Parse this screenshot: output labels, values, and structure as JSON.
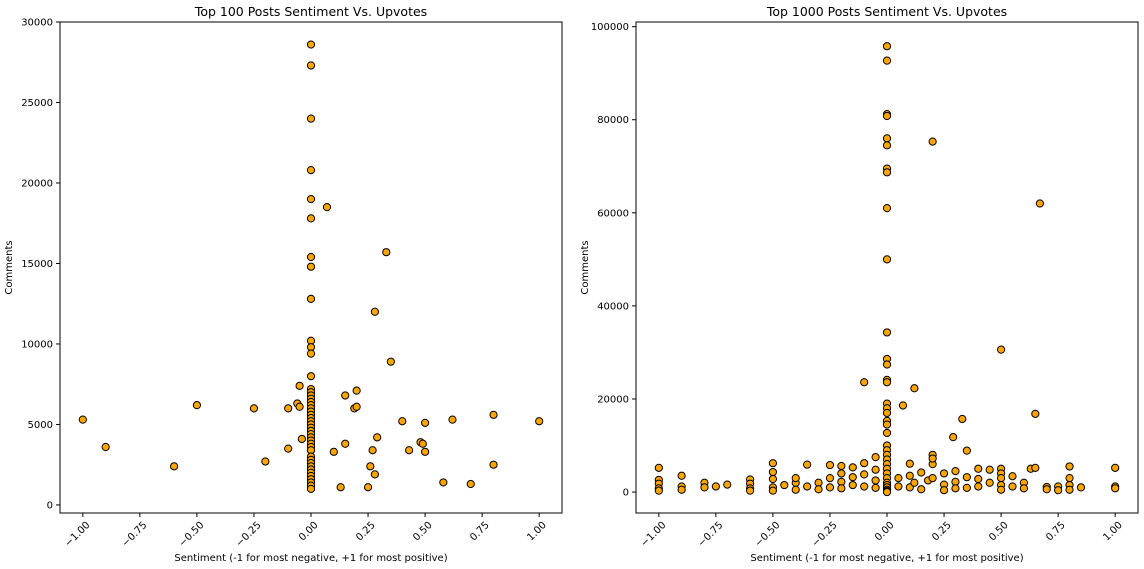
{
  "figure": {
    "background": "#ffffff",
    "marker_face_color": "#ffa500",
    "marker_edge_color": "#000000"
  },
  "chart_data": [
    {
      "type": "scatter",
      "title": "Top 100 Posts Sentiment Vs. Upvotes",
      "xlabel": "Sentiment (-1 for most negative, +1 for most positive)",
      "ylabel": "Comments",
      "xlim": [
        -1.1,
        1.1
      ],
      "ylim": [
        -500,
        30000
      ],
      "xticks": [
        -1.0,
        -0.75,
        -0.5,
        -0.25,
        0.0,
        0.25,
        0.5,
        0.75,
        1.0
      ],
      "xtick_labels": [
        "−1.00",
        "−0.75",
        "−0.50",
        "−0.25",
        "0.00",
        "0.25",
        "0.50",
        "0.75",
        "1.00"
      ],
      "yticks": [
        0,
        5000,
        10000,
        15000,
        20000,
        25000,
        30000
      ],
      "ytick_labels": [
        "0",
        "5000",
        "10000",
        "15000",
        "20000",
        "25000",
        "30000"
      ],
      "grid": false,
      "series": [
        {
          "x": [
            0,
            0,
            0,
            0,
            0,
            0,
            0,
            0,
            0,
            0,
            0,
            0,
            0,
            0,
            0,
            0,
            0,
            0,
            0,
            0,
            0,
            0,
            0,
            0,
            0,
            0,
            0,
            0,
            0,
            0,
            0,
            0,
            0,
            0,
            0,
            0,
            0,
            0,
            0,
            0,
            0,
            0,
            0,
            0,
            -1.0,
            -0.9,
            -0.6,
            -0.5,
            -0.25,
            -0.2,
            -0.1,
            -0.06,
            -0.05,
            -0.05,
            -0.04,
            -0.1,
            0.07,
            0.1,
            0.13,
            0.15,
            0.15,
            0.19,
            0.2,
            0.2,
            0.25,
            0.26,
            0.27,
            0.28,
            0.28,
            0.29,
            0.33,
            0.35,
            0.4,
            0.43,
            0.48,
            0.49,
            0.5,
            0.5,
            0.58,
            0.62,
            0.7,
            0.8,
            0.8,
            1.0
          ],
          "y": [
            28600,
            27300,
            24000,
            20800,
            19000,
            17800,
            15400,
            14800,
            12800,
            10200,
            9800,
            9400,
            8000,
            7200,
            7000,
            6800,
            6600,
            6400,
            6200,
            6000,
            5800,
            5600,
            5400,
            5200,
            5000,
            4800,
            4600,
            4400,
            4200,
            4000,
            3800,
            3600,
            3400,
            3000,
            2800,
            2600,
            2400,
            2200,
            2000,
            1800,
            1600,
            1400,
            1200,
            1000,
            5300,
            3600,
            2400,
            6200,
            6000,
            2700,
            6000,
            6300,
            6100,
            7400,
            4100,
            3500,
            18500,
            3300,
            1100,
            3800,
            6800,
            6000,
            6100,
            7100,
            1100,
            2400,
            3400,
            1900,
            12000,
            4200,
            15700,
            8900,
            5200,
            3400,
            3900,
            3800,
            5100,
            3300,
            1400,
            5300,
            1300,
            5600,
            2500,
            5200
          ]
        }
      ]
    },
    {
      "type": "scatter",
      "title": "Top 1000 Posts Sentiment Vs. Upvotes",
      "xlabel": "Sentiment (-1 for most negative, +1 for most positive)",
      "ylabel": "Comments",
      "xlim": [
        -1.1,
        1.1
      ],
      "ylim": [
        -4500,
        101000
      ],
      "xticks": [
        -1.0,
        -0.75,
        -0.5,
        -0.25,
        0.0,
        0.25,
        0.5,
        0.75,
        1.0
      ],
      "xtick_labels": [
        "−1.00",
        "−0.75",
        "−0.50",
        "−0.25",
        "0.00",
        "0.25",
        "0.50",
        "0.75",
        "1.00"
      ],
      "yticks": [
        0,
        20000,
        40000,
        60000,
        80000,
        100000
      ],
      "ytick_labels": [
        "0",
        "20000",
        "40000",
        "60000",
        "80000",
        "100000"
      ],
      "grid": false,
      "series": [
        {
          "x": [
            0,
            0,
            0,
            0,
            0,
            0,
            0,
            0,
            0,
            0,
            0,
            0,
            0,
            0,
            0,
            0,
            0,
            0,
            0,
            0,
            0,
            0,
            0,
            0,
            0,
            0,
            0,
            0,
            0,
            0,
            0,
            0,
            0,
            0,
            0,
            0.2,
            0.67,
            0.5,
            0.65,
            -0.1,
            0.12,
            0.07,
            0.33,
            0.29,
            0.35,
            0.63,
            0.2,
            0.2,
            -1.0,
            -1.0,
            -1.0,
            -1.0,
            -1.0,
            -0.9,
            -0.9,
            -0.9,
            -0.8,
            -0.8,
            -0.75,
            -0.7,
            -0.6,
            -0.6,
            -0.6,
            -0.6,
            -0.5,
            -0.5,
            -0.5,
            -0.5,
            -0.5,
            -0.45,
            -0.4,
            -0.4,
            -0.4,
            -0.35,
            -0.35,
            -0.3,
            -0.3,
            -0.25,
            -0.25,
            -0.25,
            -0.2,
            -0.2,
            -0.2,
            -0.2,
            -0.15,
            -0.15,
            -0.15,
            -0.1,
            -0.1,
            -0.1,
            -0.05,
            -0.05,
            -0.05,
            -0.05,
            0.05,
            0.05,
            0.1,
            0.1,
            0.1,
            0.12,
            0.15,
            0.15,
            0.18,
            0.2,
            0.2,
            0.25,
            0.25,
            0.25,
            0.3,
            0.3,
            0.3,
            0.35,
            0.35,
            0.4,
            0.4,
            0.4,
            0.45,
            0.45,
            0.5,
            0.5,
            0.5,
            0.5,
            0.5,
            0.55,
            0.55,
            0.6,
            0.6,
            0.65,
            0.7,
            0.7,
            0.75,
            0.75,
            0.8,
            0.8,
            0.8,
            0.8,
            0.85,
            1.0,
            1.0,
            1.0
          ],
          "y": [
            95800,
            92700,
            81200,
            80800,
            76000,
            74500,
            69500,
            68700,
            61000,
            50000,
            34300,
            28600,
            27400,
            24100,
            23600,
            19000,
            18000,
            17000,
            15300,
            14500,
            12700,
            10000,
            9000,
            8000,
            7000,
            6000,
            5000,
            4000,
            3000,
            2000,
            1500,
            1000,
            500,
            200,
            0,
            75300,
            62000,
            30600,
            16800,
            23600,
            22300,
            18600,
            15700,
            11800,
            8900,
            5000,
            8000,
            6000,
            5200,
            2600,
            1800,
            800,
            300,
            3500,
            1200,
            500,
            2000,
            1000,
            1200,
            1600,
            2700,
            1800,
            800,
            300,
            6200,
            4300,
            2800,
            1000,
            300,
            1500,
            2000,
            3000,
            500,
            5900,
            1200,
            2000,
            600,
            5800,
            3000,
            1000,
            5600,
            4000,
            2200,
            800,
            5300,
            3200,
            1500,
            6200,
            3800,
            1200,
            7500,
            4800,
            2500,
            900,
            3000,
            1200,
            6100,
            3500,
            1000,
            2000,
            4200,
            600,
            2500,
            7200,
            3000,
            4000,
            1600,
            400,
            4500,
            2200,
            800,
            3200,
            900,
            5000,
            2800,
            1200,
            4800,
            2000,
            5000,
            4000,
            3000,
            1500,
            500,
            3400,
            1200,
            2000,
            800,
            5200,
            1100,
            600,
            1200,
            400,
            5500,
            3000,
            1500,
            500,
            1000,
            5200,
            1200,
            800
          ]
        }
      ]
    }
  ]
}
